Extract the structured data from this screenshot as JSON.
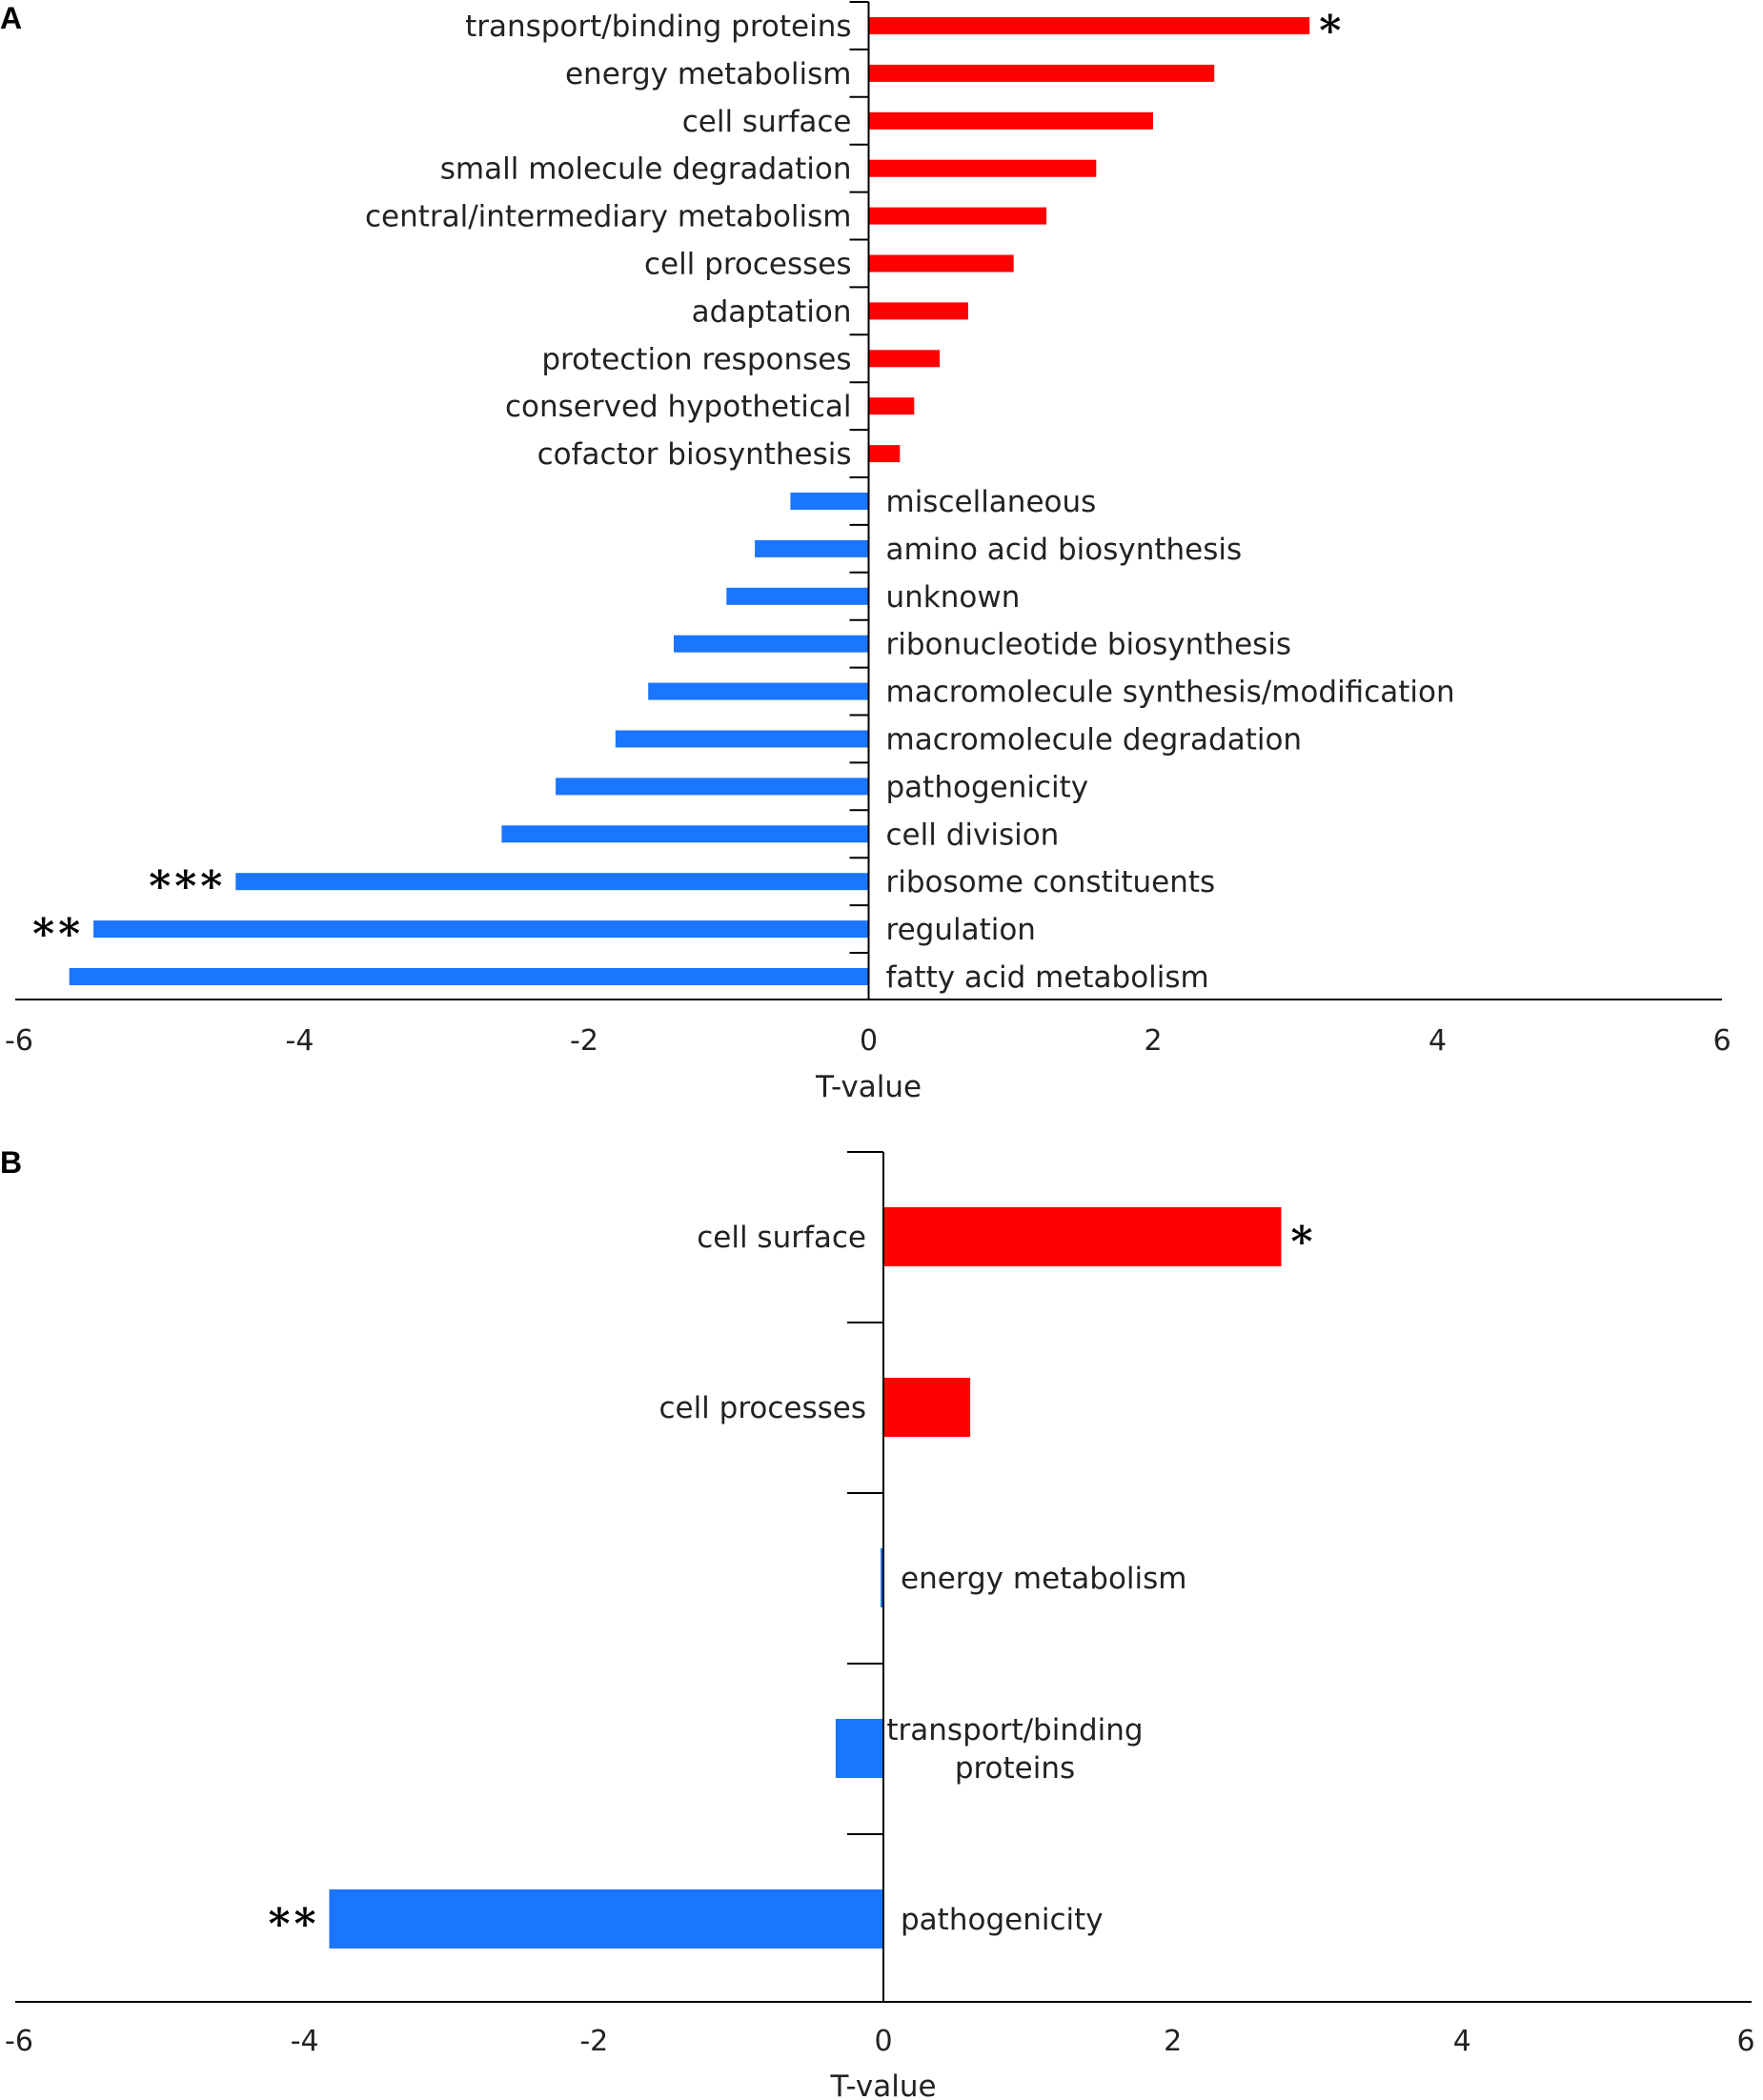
{
  "colors": {
    "positive": "#ff0000",
    "negative": "#1a75ff",
    "axis": "#000000"
  },
  "chart_data": [
    {
      "panel": "A",
      "type": "bar",
      "orientation": "horizontal",
      "xlabel": "T-value",
      "xlim": [
        -6,
        6
      ],
      "xticks": [
        "-6",
        "-4",
        "-2",
        "0",
        "2",
        "4",
        "6"
      ],
      "categories": [
        "transport/binding proteins",
        "energy metabolism",
        "cell surface",
        "small molecule degradation",
        "central/intermediary metabolism",
        "cell processes",
        "adaptation",
        "protection responses",
        "conserved hypothetical",
        "cofactor biosynthesis",
        "miscellaneous",
        "amino acid biosynthesis",
        "unknown",
        "ribonucleotide biosynthesis",
        "macromolecule synthesis/modification",
        "macromolecule degradation",
        "pathogenicity",
        "cell division",
        "ribosome constituents",
        "regulation",
        "fatty acid metabolism"
      ],
      "values": [
        3.1,
        2.43,
        2.0,
        1.6,
        1.25,
        1.02,
        0.7,
        0.5,
        0.32,
        0.22,
        -0.55,
        -0.8,
        -1.0,
        -1.37,
        -1.55,
        -1.78,
        -2.2,
        -2.58,
        -4.45,
        -5.45,
        -5.62
      ],
      "significance": [
        "*",
        "",
        "",
        "",
        "",
        "",
        "",
        "",
        "",
        "",
        "",
        "",
        "",
        "",
        "",
        "",
        "",
        "",
        "***",
        "**",
        ""
      ]
    },
    {
      "panel": "B",
      "type": "bar",
      "orientation": "horizontal",
      "xlabel": "T-value",
      "xlim": [
        -6,
        6
      ],
      "xticks": [
        "-6",
        "-4",
        "-2",
        "0",
        "2",
        "4",
        "6"
      ],
      "categories": [
        "cell surface",
        "cell processes",
        "energy metabolism",
        "transport/binding proteins",
        "pathogenicity"
      ],
      "category_lines": [
        [
          "cell surface"
        ],
        [
          "cell processes"
        ],
        [
          "energy metabolism"
        ],
        [
          "transport/binding",
          "proteins"
        ],
        [
          "pathogenicity"
        ]
      ],
      "values": [
        2.75,
        0.6,
        -0.02,
        -0.33,
        -3.83
      ],
      "significance": [
        "*",
        "",
        "",
        "",
        "**"
      ]
    }
  ]
}
